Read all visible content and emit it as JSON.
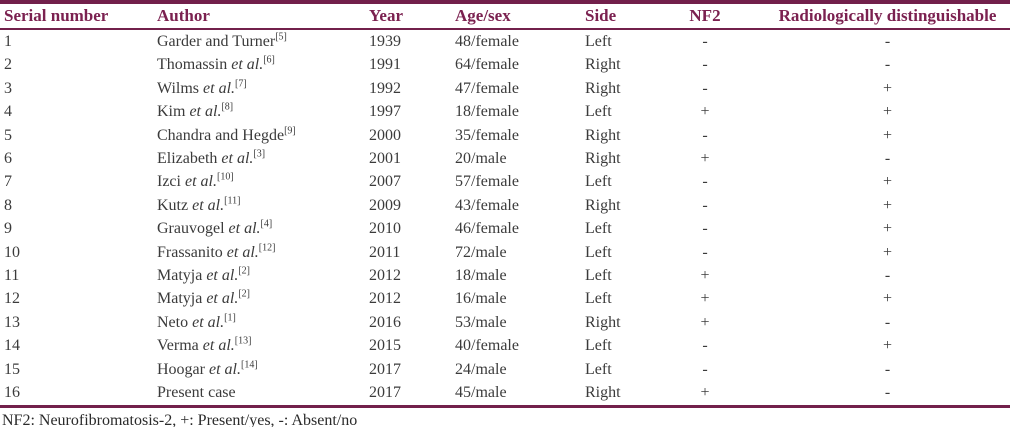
{
  "colors": {
    "accent_maroon": "#7b2150",
    "border_maroon": "#72204b",
    "body_text": "#3b3b3b",
    "background": "#ffffff"
  },
  "table": {
    "columns": [
      {
        "key": "serial",
        "label": "Serial number",
        "align": "left"
      },
      {
        "key": "author",
        "label": "Author",
        "align": "left"
      },
      {
        "key": "year",
        "label": "Year",
        "align": "left"
      },
      {
        "key": "age_sex",
        "label": "Age/sex",
        "align": "left"
      },
      {
        "key": "side",
        "label": "Side",
        "align": "left"
      },
      {
        "key": "nf2",
        "label": "NF2",
        "align": "center"
      },
      {
        "key": "radiological",
        "label": "Radiologically distinguishable",
        "align": "center"
      }
    ],
    "rows": [
      {
        "serial": "1",
        "author": "Garder and Turner",
        "author_italic": "",
        "ref": "[5]",
        "year": "1939",
        "age_sex": "48/female",
        "side": "Left",
        "nf2": "-",
        "radiological": "-"
      },
      {
        "serial": "2",
        "author": "Thomassin ",
        "author_italic": "et al.",
        "ref": "[6]",
        "year": "1991",
        "age_sex": "64/female",
        "side": "Right",
        "nf2": "-",
        "radiological": "-"
      },
      {
        "serial": "3",
        "author": "Wilms ",
        "author_italic": "et al.",
        "ref": "[7]",
        "year": "1992",
        "age_sex": "47/female",
        "side": "Right",
        "nf2": "-",
        "radiological": "+"
      },
      {
        "serial": "4",
        "author": "Kim ",
        "author_italic": "et al.",
        "ref": "[8]",
        "year": "1997",
        "age_sex": "18/female",
        "side": "Left",
        "nf2": "+",
        "radiological": "+"
      },
      {
        "serial": "5",
        "author": "Chandra and Hegde",
        "author_italic": "",
        "ref": "[9]",
        "year": "2000",
        "age_sex": "35/female",
        "side": "Right",
        "nf2": "-",
        "radiological": "+"
      },
      {
        "serial": "6",
        "author": "Elizabeth ",
        "author_italic": "et al.",
        "ref": "[3]",
        "year": "2001",
        "age_sex": "20/male",
        "side": "Right",
        "nf2": "+",
        "radiological": "-"
      },
      {
        "serial": "7",
        "author": "Izci ",
        "author_italic": "et al.",
        "ref": "[10]",
        "year": "2007",
        "age_sex": "57/female",
        "side": "Left",
        "nf2": "-",
        "radiological": "+"
      },
      {
        "serial": "8",
        "author": "Kutz ",
        "author_italic": "et al.",
        "ref": "[11]",
        "year": "2009",
        "age_sex": "43/female",
        "side": "Right",
        "nf2": "-",
        "radiological": "+"
      },
      {
        "serial": "9",
        "author": "Grauvogel ",
        "author_italic": "et al.",
        "ref": "[4]",
        "year": "2010",
        "age_sex": "46/female",
        "side": "Left",
        "nf2": "-",
        "radiological": "+"
      },
      {
        "serial": "10",
        "author": "Frassanito ",
        "author_italic": "et al.",
        "ref": "[12]",
        "year": "2011",
        "age_sex": "72/male",
        "side": "Left",
        "nf2": "-",
        "radiological": "+"
      },
      {
        "serial": "11",
        "author": "Matyja ",
        "author_italic": "et al.",
        "ref": "[2]",
        "year": "2012",
        "age_sex": "18/male",
        "side": "Left",
        "nf2": "+",
        "radiological": "-"
      },
      {
        "serial": "12",
        "author": "Matyja ",
        "author_italic": "et al.",
        "ref": "[2]",
        "year": "2012",
        "age_sex": "16/male",
        "side": "Left",
        "nf2": "+",
        "radiological": "+"
      },
      {
        "serial": "13",
        "author": "Neto ",
        "author_italic": "et al.",
        "ref": "[1]",
        "year": "2016",
        "age_sex": "53/male",
        "side": "Right",
        "nf2": "+",
        "radiological": "-"
      },
      {
        "serial": "14",
        "author": "Verma ",
        "author_italic": "et al.",
        "ref": "[13]",
        "year": "2015",
        "age_sex": "40/female",
        "side": "Left",
        "nf2": "-",
        "radiological": "+"
      },
      {
        "serial": "15",
        "author": "Hoogar ",
        "author_italic": "et al.",
        "ref": "[14]",
        "year": "2017",
        "age_sex": "24/male",
        "side": "Left",
        "nf2": "-",
        "radiological": "-"
      },
      {
        "serial": "16",
        "author": "Present case",
        "author_italic": "",
        "ref": "",
        "year": "2017",
        "age_sex": "45/male",
        "side": "Right",
        "nf2": "+",
        "radiological": "-"
      }
    ]
  },
  "footnote": "NF2: Neurofibromatosis-2, +: Present/yes, -: Absent/no"
}
